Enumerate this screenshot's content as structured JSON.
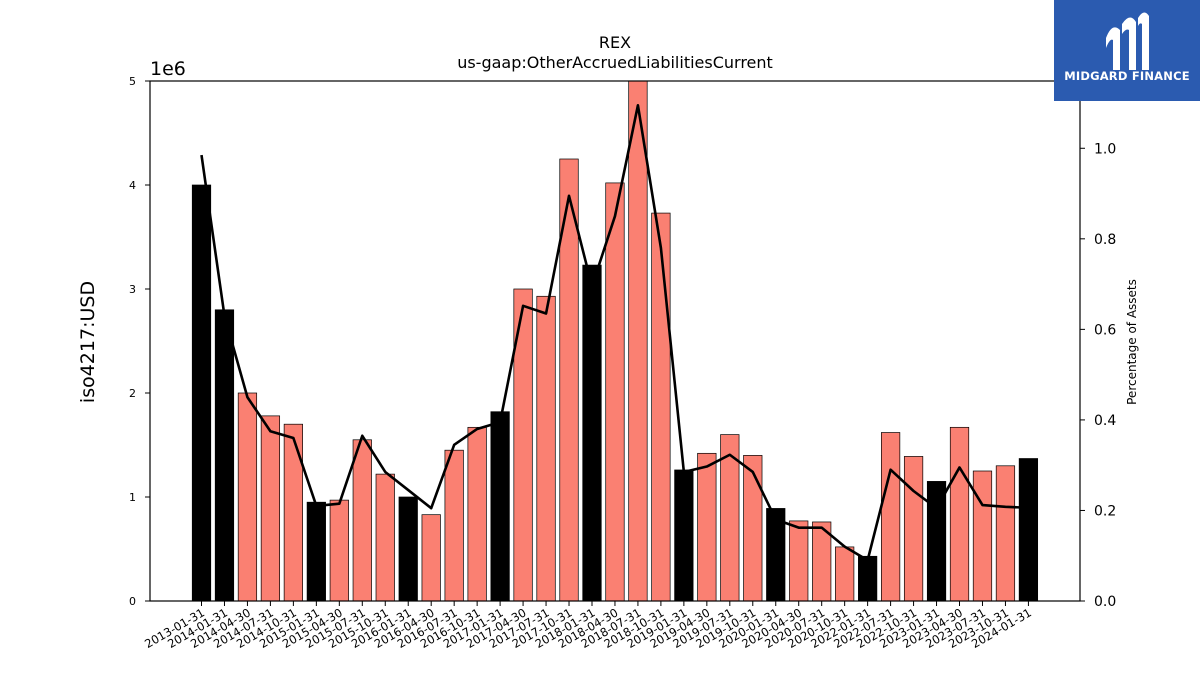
{
  "chart_data": {
    "type": "bar",
    "title": "REX",
    "subtitle": "us-gaap:OtherAccruedLiabilitiesCurrent",
    "ylabel": "iso4217:USD",
    "y_scale_label": "1e6",
    "y2label": "Percentage of Assets",
    "ylim": [
      0,
      5000000
    ],
    "y2lim": [
      0,
      1.1486
    ],
    "y_ticks": [
      "0",
      "1",
      "2",
      "3",
      "4",
      "5"
    ],
    "y2_ticks": [
      "0.0",
      "0.2",
      "0.4",
      "0.6",
      "0.8",
      "1.0"
    ],
    "categories": [
      "2013-01-31",
      "2014-01-31",
      "2014-04-30",
      "2014-07-31",
      "2014-10-31",
      "2015-01-31",
      "2015-04-30",
      "2015-07-31",
      "2015-10-31",
      "2016-01-31",
      "2016-04-30",
      "2016-07-31",
      "2016-10-31",
      "2017-01-31",
      "2017-04-30",
      "2017-07-31",
      "2017-10-31",
      "2018-01-31",
      "2018-04-30",
      "2018-07-31",
      "2018-10-31",
      "2019-01-31",
      "2019-04-30",
      "2019-07-31",
      "2019-10-31",
      "2020-01-31",
      "2020-04-30",
      "2020-07-31",
      "2020-10-31",
      "2022-01-31",
      "2022-07-31",
      "2022-10-31",
      "2023-01-31",
      "2023-04-30",
      "2023-07-31",
      "2023-10-31",
      "2024-01-31"
    ],
    "series": [
      {
        "type": "bar",
        "values": [
          4000000,
          2800000,
          2000000,
          1780000,
          1700000,
          950000,
          970000,
          1550000,
          1220000,
          1000000,
          830000,
          1450000,
          1670000,
          1820000,
          3000000,
          2930000,
          4250000,
          3230000,
          4020000,
          5030000,
          3730000,
          1260000,
          1420000,
          1600000,
          1400000,
          890000,
          770000,
          760000,
          520000,
          430000,
          1620000,
          1390000,
          1150000,
          1670000,
          1250000,
          1300000,
          1370000
        ],
        "annual": [
          true,
          true,
          false,
          false,
          false,
          true,
          false,
          false,
          false,
          true,
          false,
          false,
          false,
          true,
          false,
          false,
          false,
          true,
          false,
          false,
          false,
          true,
          false,
          false,
          false,
          true,
          false,
          false,
          false,
          true,
          false,
          false,
          true,
          false,
          false,
          false,
          true
        ]
      },
      {
        "type": "line",
        "axis": "right",
        "values": [
          0.985,
          0.63,
          0.45,
          0.375,
          0.36,
          0.21,
          0.215,
          0.365,
          0.285,
          0.245,
          0.205,
          0.345,
          0.38,
          0.395,
          0.652,
          0.635,
          0.895,
          0.695,
          0.85,
          1.095,
          0.78,
          0.285,
          0.297,
          0.323,
          0.285,
          0.18,
          0.162,
          0.162,
          0.12,
          0.09,
          0.29,
          0.243,
          0.205,
          0.295,
          0.212,
          0.208,
          0.206
        ]
      }
    ],
    "colors": {
      "annual": "#000000",
      "quarter": "#fa8072",
      "line": "#000000"
    },
    "grid": false
  },
  "logo": {
    "text": "MIDGARD FINANCE",
    "background": "#2b5bb0"
  }
}
